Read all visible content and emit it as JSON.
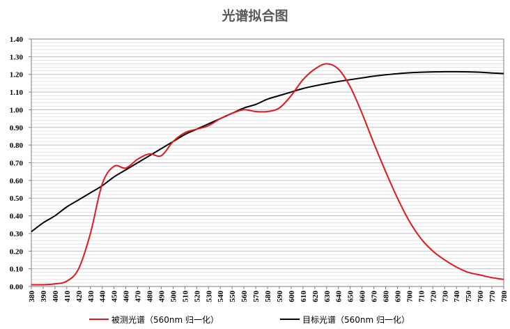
{
  "chart_data": {
    "type": "line",
    "title": "光谱拟合图",
    "xlabel": "",
    "ylabel": "",
    "xlim": [
      380,
      780
    ],
    "ylim": [
      0,
      1.4
    ],
    "x_ticks": [
      380,
      390,
      400,
      410,
      420,
      430,
      440,
      450,
      460,
      470,
      480,
      490,
      500,
      510,
      520,
      530,
      540,
      550,
      560,
      570,
      580,
      590,
      600,
      610,
      620,
      630,
      640,
      650,
      660,
      670,
      680,
      690,
      700,
      710,
      720,
      730,
      740,
      750,
      760,
      770,
      780
    ],
    "y_ticks": [
      "0.00",
      "0.10",
      "0.20",
      "0.30",
      "0.40",
      "0.50",
      "0.60",
      "0.70",
      "0.80",
      "0.90",
      "1.00",
      "1.10",
      "1.20",
      "1.30",
      "1.40"
    ],
    "grid": true,
    "legend_position": "bottom",
    "x": [
      380,
      390,
      400,
      410,
      420,
      430,
      440,
      450,
      460,
      470,
      480,
      490,
      500,
      510,
      520,
      530,
      540,
      550,
      560,
      570,
      580,
      590,
      600,
      610,
      620,
      630,
      640,
      650,
      660,
      670,
      680,
      690,
      700,
      710,
      720,
      730,
      740,
      750,
      760,
      770,
      780
    ],
    "series": [
      {
        "name": "被测光谱（560nm 归一化）",
        "color": "#e8141c",
        "values": [
          0.01,
          0.01,
          0.015,
          0.03,
          0.1,
          0.3,
          0.58,
          0.68,
          0.67,
          0.72,
          0.75,
          0.74,
          0.82,
          0.87,
          0.89,
          0.91,
          0.95,
          0.98,
          1.0,
          0.99,
          0.99,
          1.01,
          1.08,
          1.17,
          1.23,
          1.26,
          1.23,
          1.13,
          0.98,
          0.81,
          0.65,
          0.5,
          0.37,
          0.27,
          0.2,
          0.15,
          0.11,
          0.08,
          0.065,
          0.05,
          0.04
        ]
      },
      {
        "name": "目标光谱（560nm 归一化）",
        "color": "#000000",
        "values": [
          0.31,
          0.36,
          0.4,
          0.45,
          0.49,
          0.53,
          0.57,
          0.62,
          0.66,
          0.7,
          0.74,
          0.78,
          0.82,
          0.86,
          0.89,
          0.92,
          0.95,
          0.98,
          1.01,
          1.03,
          1.06,
          1.08,
          1.1,
          1.12,
          1.135,
          1.148,
          1.16,
          1.17,
          1.18,
          1.19,
          1.198,
          1.204,
          1.209,
          1.212,
          1.214,
          1.215,
          1.215,
          1.214,
          1.212,
          1.208,
          1.205
        ]
      }
    ]
  }
}
